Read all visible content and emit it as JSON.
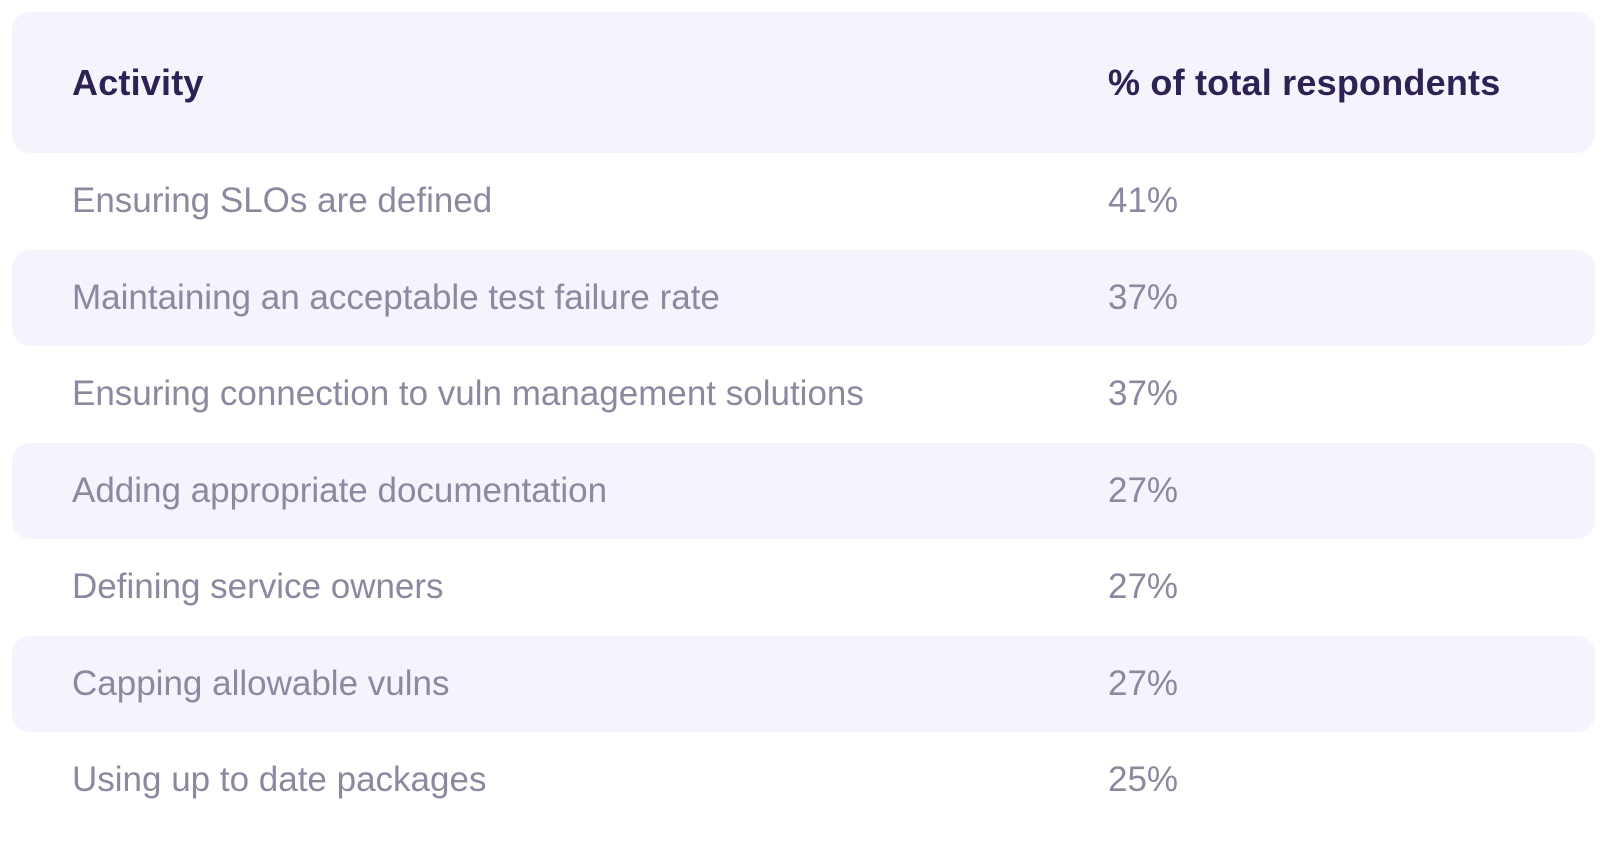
{
  "chart_data": {
    "type": "table",
    "title": "",
    "columns": [
      "Activity",
      "% of total respondents"
    ],
    "rows": [
      {
        "activity": "Ensuring SLOs are defined",
        "percent_label": "41%",
        "percent": 41
      },
      {
        "activity": "Maintaining an acceptable test failure rate",
        "percent_label": "37%",
        "percent": 37
      },
      {
        "activity": "Ensuring connection to vuln management solutions",
        "percent_label": "37%",
        "percent": 37
      },
      {
        "activity": "Adding appropriate documentation",
        "percent_label": "27%",
        "percent": 27
      },
      {
        "activity": "Defining service owners",
        "percent_label": "27%",
        "percent": 27
      },
      {
        "activity": "Capping allowable vulns",
        "percent_label": "27%",
        "percent": 27
      },
      {
        "activity": "Using up to date packages",
        "percent_label": "25%",
        "percent": 25
      }
    ],
    "layout_hints": {
      "striped_rows": "even rows shaded",
      "value_alignment": "left"
    }
  },
  "colors": {
    "stripe_background": "#f5f4fc",
    "header_text": "#2e2153",
    "body_text": "#8e87a0",
    "page_background": "#ffffff"
  }
}
